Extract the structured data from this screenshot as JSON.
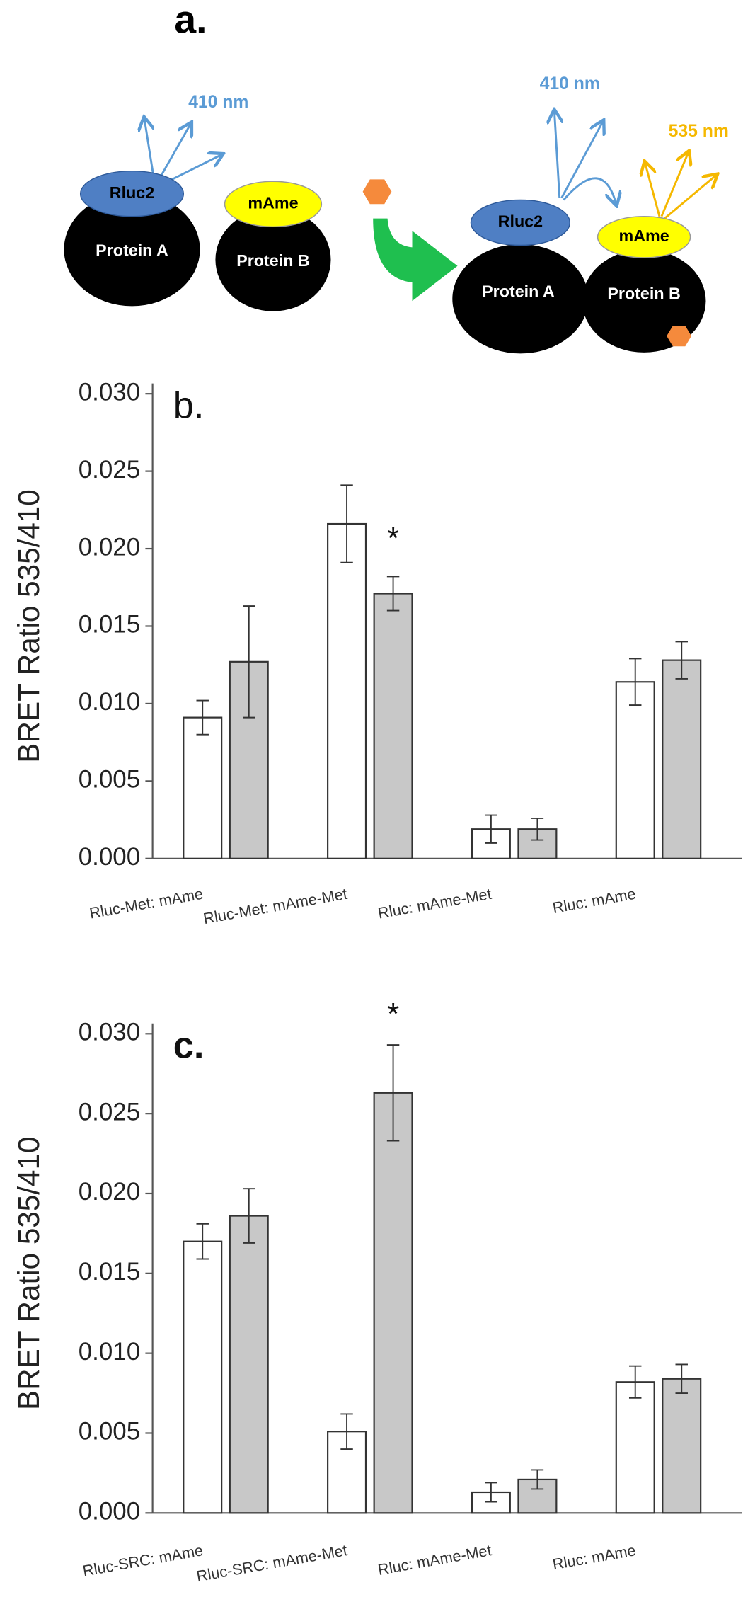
{
  "diagram": {
    "panel_label": "a.",
    "left_rluc": "Rluc2",
    "left_protein_a": "Protein A",
    "left_mame": "mAme",
    "left_protein_b": "Protein B",
    "left_wavelength": "410 nm",
    "right_rluc": "Rluc2",
    "right_protein_a": "Protein A",
    "right_mame": "mAme",
    "right_protein_b": "Protein B",
    "right_wavelength_blue": "410 nm",
    "right_wavelength_yellow": "535 nm"
  },
  "chart_data": [
    {
      "type": "bar",
      "panel_label": "b.",
      "y_label": "BRET Ratio 535/410",
      "categories": [
        "Rluc-Met: mAme",
        "Rluc-Met: mAme-Met",
        "Rluc: mAme-Met",
        "Rluc: mAme"
      ],
      "series": [
        {
          "color": "#ffffff",
          "values": [
            0.0091,
            0.0216,
            0.0019,
            0.0114
          ],
          "errors": [
            0.0011,
            0.0025,
            0.0009,
            0.0015
          ]
        },
        {
          "color": "#c8c8c8",
          "values": [
            0.0127,
            0.0171,
            0.0019,
            0.0128
          ],
          "errors": [
            0.0036,
            0.0011,
            0.0007,
            0.0012
          ]
        }
      ],
      "ylim": [
        0,
        0.03
      ],
      "yticks": [
        {
          "value": 0,
          "label": "0.000"
        },
        {
          "value": 0.005,
          "label": "0.005"
        },
        {
          "value": 0.01,
          "label": "0.010"
        },
        {
          "value": 0.015,
          "label": "0.015"
        },
        {
          "value": 0.02,
          "label": "0.020"
        },
        {
          "value": 0.025,
          "label": "0.025"
        },
        {
          "value": 0.03,
          "label": "0.030"
        }
      ],
      "annotation": "*"
    },
    {
      "type": "bar",
      "panel_label": "c.",
      "y_label": "BRET Ratio 535/410",
      "categories": [
        "Rluc-SRC: mAme",
        "Rluc-SRC: mAme-Met",
        "Rluc: mAme-Met",
        "Rluc: mAme"
      ],
      "series": [
        {
          "color": "#ffffff",
          "values": [
            0.017,
            0.0051,
            0.0013,
            0.0082
          ],
          "errors": [
            0.0011,
            0.0011,
            0.0006,
            0.001
          ]
        },
        {
          "color": "#c8c8c8",
          "values": [
            0.0186,
            0.0263,
            0.0021,
            0.0084
          ],
          "errors": [
            0.0017,
            0.003,
            0.0006,
            0.0009
          ]
        }
      ],
      "ylim": [
        0,
        0.03
      ],
      "yticks": [
        {
          "value": 0,
          "label": "0.000"
        },
        {
          "value": 0.005,
          "label": "0.005"
        },
        {
          "value": 0.01,
          "label": "0.010"
        },
        {
          "value": 0.015,
          "label": "0.015"
        },
        {
          "value": 0.02,
          "label": "0.020"
        },
        {
          "value": 0.025,
          "label": "0.025"
        },
        {
          "value": 0.03,
          "label": "0.030"
        }
      ],
      "annotation": "*"
    }
  ]
}
